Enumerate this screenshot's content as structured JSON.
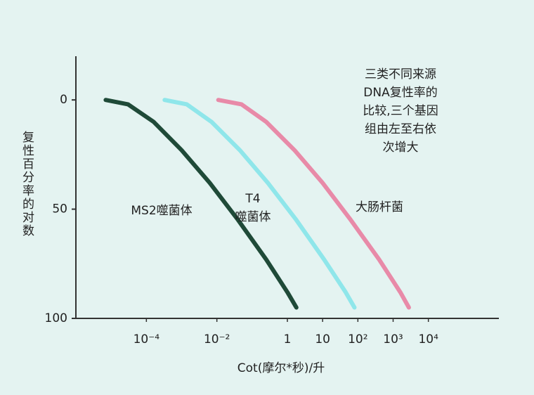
{
  "chart_data": {
    "type": "line",
    "y_label": "复性百分率的对数",
    "x_label": "Cot(摩尔*秒)/升",
    "note_lines": [
      "三类不同来源",
      "DNA复性率的",
      "比较,三个基因",
      "组由左至右依",
      "次增大"
    ],
    "x_log": true,
    "y_inverted": true,
    "xlim": [
      1e-06,
      1000000
    ],
    "ylim": [
      -20,
      100
    ],
    "xticks": [
      {
        "value": 0.0001,
        "label": "10⁻⁴"
      },
      {
        "value": 0.01,
        "label": "10⁻²"
      },
      1,
      10,
      {
        "value": 100,
        "label": "10²"
      },
      {
        "value": 1000,
        "label": "10³"
      },
      {
        "value": 10000,
        "label": "10⁴"
      }
    ],
    "yticks": [
      0,
      50,
      100
    ],
    "series": [
      {
        "label_lines": [
          "MS2噬菌体"
        ],
        "color": "#1f4a38",
        "x": [
          7e-06,
          3e-05,
          0.00016,
          0.001,
          0.0063,
          0.04,
          0.25,
          1,
          1.8
        ],
        "values": [
          0,
          2,
          10,
          23,
          38,
          55,
          73,
          88,
          95
        ]
      },
      {
        "label_lines": [
          "T4",
          "噬菌体"
        ],
        "color": "#8fe6ea",
        "x": [
          0.00033,
          0.0014,
          0.007,
          0.045,
          0.28,
          1.8,
          11,
          45,
          80
        ],
        "values": [
          0,
          2,
          10,
          23,
          38,
          55,
          73,
          88,
          95
        ]
      },
      {
        "label_lines": [
          "大肠杆菌"
        ],
        "color": "#e88aa8",
        "x": [
          0.011,
          0.05,
          0.25,
          1.6,
          10,
          63,
          400,
          1600,
          2800
        ],
        "values": [
          0,
          2,
          10,
          23,
          38,
          55,
          73,
          88,
          95
        ]
      }
    ]
  }
}
